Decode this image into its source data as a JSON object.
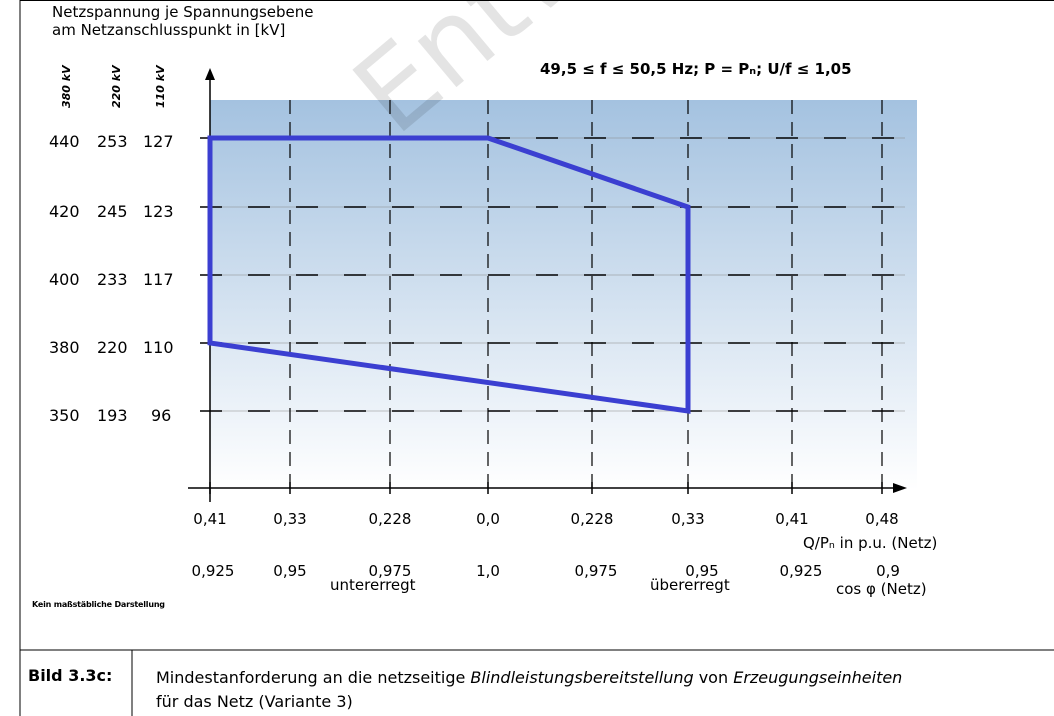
{
  "header": {
    "line1": "Netzspannung je Spannungsebene",
    "line2": "am Netzanschlusspunkt in [kV]"
  },
  "level_headers": [
    "380 kV",
    "220 kV",
    "110 kV"
  ],
  "y_rows": [
    {
      "a": "440",
      "b": "253",
      "c": "127"
    },
    {
      "a": "420",
      "b": "245",
      "c": "123"
    },
    {
      "a": "400",
      "b": "233",
      "c": "117"
    },
    {
      "a": "380",
      "b": "220",
      "c": "110"
    },
    {
      "a": "350",
      "b": "193",
      "c": "96"
    }
  ],
  "condition": "49,5 ≤ f ≤ 50,5 Hz; P = Pₙ; U/f ≤ 1,05",
  "x_ticks_q": [
    "0,41",
    "0,33",
    "0,228",
    "0,0",
    "0,228",
    "0,33",
    "0,41",
    "0,48"
  ],
  "x_ticks_cos": [
    "0,925",
    "0,95",
    "0,975",
    "1,0",
    "0,975",
    "0,95",
    "0,925",
    "0,9"
  ],
  "x_axis_label": "Q/Pₙ in p.u. (Netz)",
  "cos_axis_label": "cos φ (Netz)",
  "under_excited": "untererregt",
  "over_excited": "übererregt",
  "note": "Kein maßstäbliche Darstellung",
  "watermark": "Entw",
  "caption": {
    "number": "Bild 3.3c:",
    "text_plain1": "Mindestanforderung an die netzseitige ",
    "text_italic1": "Blindleistungsbereitstellung",
    "text_plain2": " von ",
    "text_italic2": "Erzeugungseinheiten",
    "line2": "für das Netz (Variante 3)"
  },
  "colors": {
    "region_top": "#a4c2e0",
    "region_bottom": "#ffffff",
    "polygon": "#3b3fd1",
    "grid": "#000000"
  },
  "chart_data": {
    "type": "area",
    "title": "",
    "xlabel": "Q/Pₙ in p.u. (Netz)",
    "ylabel": "Netzspannung je Spannungsebene am Netzanschlusspunkt in [kV]",
    "categories": [
      "0,41",
      "0,33",
      "0,228",
      "0,0",
      "0,228",
      "0,33",
      "0,41",
      "0,48"
    ],
    "y_levels_380kV": [
      350,
      380,
      400,
      420,
      440
    ],
    "y_levels_220kV": [
      193,
      220,
      233,
      245,
      253
    ],
    "y_levels_110kV": [
      96,
      110,
      117,
      123,
      127
    ],
    "series": [
      {
        "values": [
          {
            "x": 0,
            "y": 440
          },
          {
            "x": 3,
            "y": 440
          },
          {
            "x": 5,
            "y": 420
          },
          {
            "x": 5,
            "y": 350
          },
          {
            "x": 0,
            "y": 380
          }
        ]
      }
    ],
    "x_index_note": "x is the index into categories (tick positions 0–7)",
    "grid": true
  }
}
